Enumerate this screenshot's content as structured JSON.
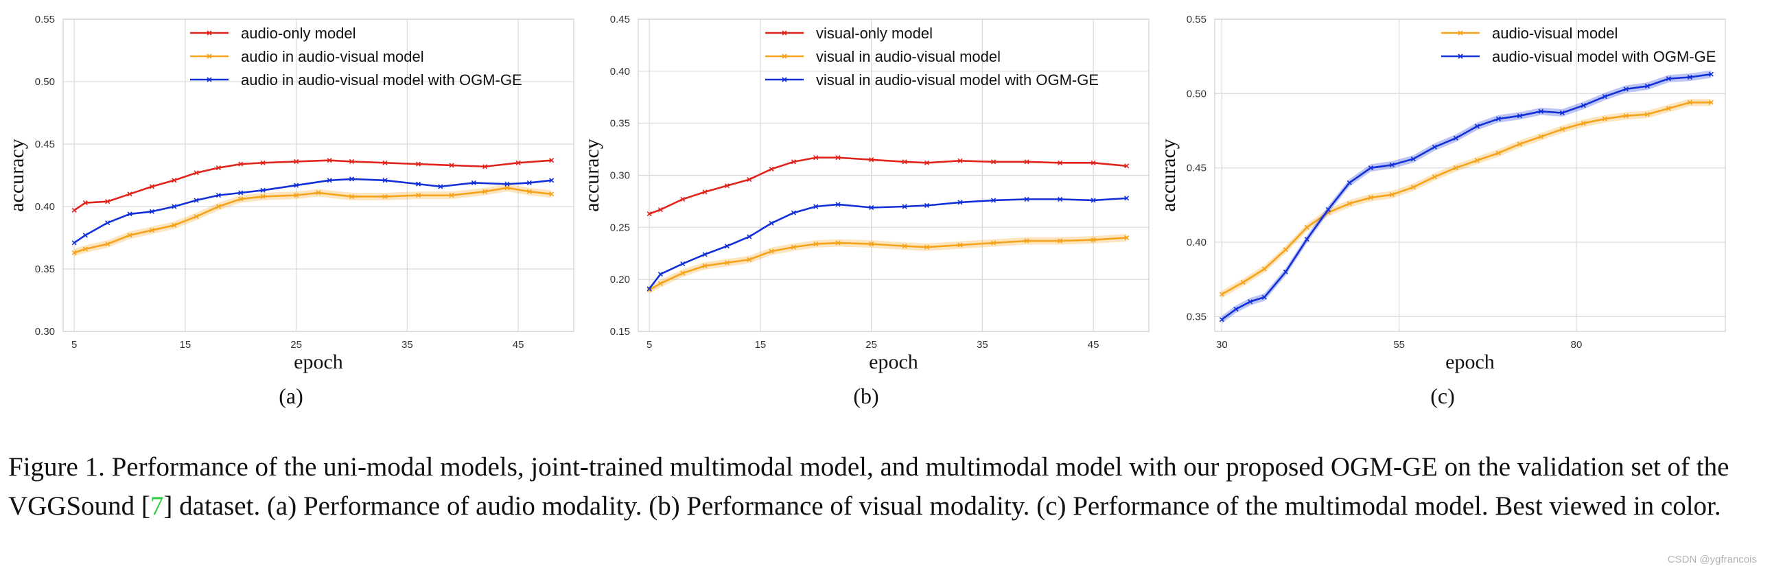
{
  "colors": {
    "red": "#e0241b",
    "orange": "#f5a31a",
    "blue": "#1230d8",
    "grid": "#d9d9d9",
    "green_ref": "#2ecc40"
  },
  "chart_data": [
    {
      "type": "line",
      "panel_label": "(a)",
      "xlabel": "epoch",
      "ylabel": "accuracy",
      "xticks": [
        5,
        15,
        25,
        35,
        45
      ],
      "yticks": [
        0.3,
        0.35,
        0.4,
        0.45,
        0.5,
        0.55
      ],
      "xlim": [
        4,
        50
      ],
      "ylim": [
        0.3,
        0.55
      ],
      "grid": true,
      "legend_position": "top-center",
      "series": [
        {
          "name": "audio-only model",
          "color": "red",
          "band": false,
          "x": [
            5,
            6,
            8,
            10,
            12,
            14,
            16,
            18,
            20,
            22,
            25,
            28,
            30,
            33,
            36,
            39,
            42,
            45,
            48
          ],
          "y": [
            0.397,
            0.403,
            0.404,
            0.41,
            0.416,
            0.421,
            0.427,
            0.431,
            0.434,
            0.435,
            0.436,
            0.437,
            0.436,
            0.435,
            0.434,
            0.433,
            0.432,
            0.435,
            0.437
          ]
        },
        {
          "name": "audio in audio-visual model",
          "color": "orange",
          "band": true,
          "x": [
            5,
            6,
            8,
            10,
            12,
            14,
            16,
            18,
            20,
            22,
            25,
            27,
            30,
            33,
            36,
            39,
            42,
            44,
            46,
            48
          ],
          "y": [
            0.363,
            0.366,
            0.37,
            0.377,
            0.381,
            0.385,
            0.392,
            0.4,
            0.406,
            0.408,
            0.409,
            0.411,
            0.408,
            0.408,
            0.409,
            0.409,
            0.412,
            0.415,
            0.412,
            0.41
          ]
        },
        {
          "name": "audio in audio-visual model with OGM-GE",
          "color": "blue",
          "band": false,
          "x": [
            5,
            6,
            8,
            10,
            12,
            14,
            16,
            18,
            20,
            22,
            25,
            28,
            30,
            33,
            36,
            38,
            41,
            44,
            46,
            48
          ],
          "y": [
            0.371,
            0.377,
            0.387,
            0.394,
            0.396,
            0.4,
            0.405,
            0.409,
            0.411,
            0.413,
            0.417,
            0.421,
            0.422,
            0.421,
            0.418,
            0.416,
            0.419,
            0.418,
            0.419,
            0.421
          ]
        }
      ]
    },
    {
      "type": "line",
      "panel_label": "(b)",
      "xlabel": "epoch",
      "ylabel": "accuracy",
      "xticks": [
        5,
        15,
        25,
        35,
        45
      ],
      "yticks": [
        0.15,
        0.2,
        0.25,
        0.3,
        0.35,
        0.4,
        0.45
      ],
      "xlim": [
        4,
        50
      ],
      "ylim": [
        0.15,
        0.45
      ],
      "grid": true,
      "legend_position": "top-center",
      "series": [
        {
          "name": "visual-only model",
          "color": "red",
          "band": false,
          "x": [
            5,
            6,
            8,
            10,
            12,
            14,
            16,
            18,
            20,
            22,
            25,
            28,
            30,
            33,
            36,
            39,
            42,
            45,
            48
          ],
          "y": [
            0.263,
            0.267,
            0.277,
            0.284,
            0.29,
            0.296,
            0.306,
            0.313,
            0.317,
            0.317,
            0.315,
            0.313,
            0.312,
            0.314,
            0.313,
            0.313,
            0.312,
            0.312,
            0.309
          ]
        },
        {
          "name": "visual in audio-visual model",
          "color": "orange",
          "band": true,
          "x": [
            5,
            6,
            8,
            10,
            12,
            14,
            16,
            18,
            20,
            22,
            25,
            28,
            30,
            33,
            36,
            39,
            42,
            45,
            48
          ],
          "y": [
            0.19,
            0.196,
            0.206,
            0.213,
            0.216,
            0.219,
            0.227,
            0.231,
            0.234,
            0.235,
            0.234,
            0.232,
            0.231,
            0.233,
            0.235,
            0.237,
            0.237,
            0.238,
            0.24
          ]
        },
        {
          "name": "visual in audio-visual model with OGM-GE",
          "color": "blue",
          "band": false,
          "x": [
            5,
            6,
            8,
            10,
            12,
            14,
            16,
            18,
            20,
            22,
            25,
            28,
            30,
            33,
            36,
            39,
            42,
            45,
            48
          ],
          "y": [
            0.191,
            0.205,
            0.215,
            0.224,
            0.232,
            0.241,
            0.254,
            0.264,
            0.27,
            0.272,
            0.269,
            0.27,
            0.271,
            0.274,
            0.276,
            0.277,
            0.277,
            0.276,
            0.278
          ]
        }
      ]
    },
    {
      "type": "line",
      "panel_label": "(c)",
      "xlabel": "epoch",
      "ylabel": "accuracy",
      "xticks": [
        30,
        55,
        80
      ],
      "yticks": [
        0.35,
        0.4,
        0.45,
        0.5,
        0.55
      ],
      "xlim": [
        29,
        101
      ],
      "ylim": [
        0.34,
        0.55
      ],
      "grid": true,
      "legend_position": "top-center",
      "series": [
        {
          "name": "audio-visual model",
          "color": "orange",
          "band": true,
          "x": [
            30,
            33,
            36,
            39,
            42,
            45,
            48,
            51,
            54,
            57,
            60,
            63,
            66,
            69,
            72,
            75,
            78,
            81,
            84,
            87,
            90,
            93,
            96,
            99
          ],
          "y": [
            0.365,
            0.373,
            0.382,
            0.395,
            0.41,
            0.42,
            0.426,
            0.43,
            0.432,
            0.437,
            0.444,
            0.45,
            0.455,
            0.46,
            0.466,
            0.471,
            0.476,
            0.48,
            0.483,
            0.485,
            0.486,
            0.49,
            0.494,
            0.494
          ]
        },
        {
          "name": "audio-visual model with OGM-GE",
          "color": "blue",
          "band": true,
          "x": [
            30,
            32,
            34,
            36,
            39,
            42,
            45,
            48,
            51,
            54,
            57,
            60,
            63,
            66,
            69,
            72,
            75,
            78,
            81,
            84,
            87,
            90,
            93,
            96,
            99
          ],
          "y": [
            0.348,
            0.355,
            0.36,
            0.363,
            0.38,
            0.402,
            0.422,
            0.44,
            0.45,
            0.452,
            0.456,
            0.464,
            0.47,
            0.478,
            0.483,
            0.485,
            0.488,
            0.487,
            0.492,
            0.498,
            0.503,
            0.505,
            0.51,
            0.511,
            0.513
          ]
        }
      ]
    }
  ],
  "caption": {
    "before_ref": "Figure 1. Performance of the uni-modal models, joint-trained multimodal model, and multimodal model with our proposed OGM-GE on the validation set of the VGGSound [",
    "ref": "7",
    "after_ref": "] dataset. (a) Performance of audio modality. (b) Performance of visual modality. (c) Performance of the multimodal model. Best viewed in color."
  },
  "watermark": "CSDN @ygfrancois"
}
